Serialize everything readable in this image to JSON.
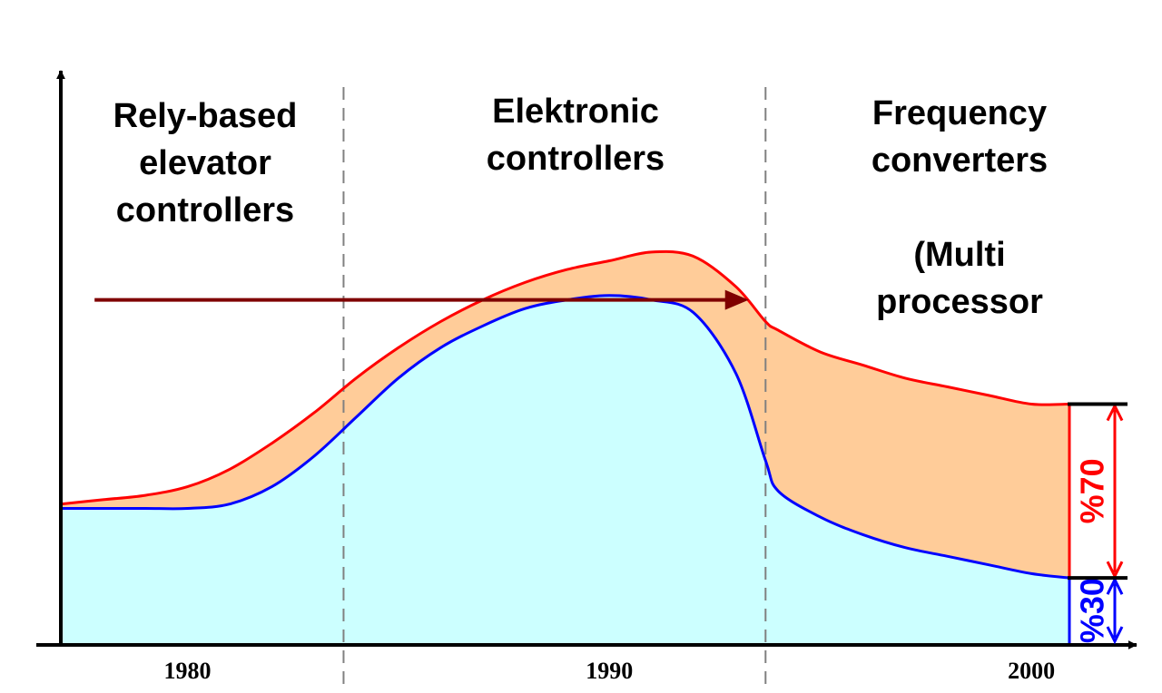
{
  "chart_data": {
    "type": "area",
    "x_ticks": [
      {
        "value": 1980,
        "label": "1980"
      },
      {
        "value": 1990,
        "label": "1990"
      },
      {
        "value": 2000,
        "label": "2000"
      }
    ],
    "eras": [
      {
        "lines": [
          "Rely-based",
          "elevator",
          "controllers"
        ]
      },
      {
        "lines": [
          "Elektronic",
          "controllers"
        ]
      },
      {
        "lines": [
          "Frequency",
          "converters",
          "",
          "(Multi",
          "processor"
        ]
      }
    ],
    "era_dividers_x": [
      1983.7,
      1993.7
    ],
    "xlim": [
      1977,
      2000.9
    ],
    "ylim": [
      0,
      100
    ],
    "series": [
      {
        "color": "#ff0000",
        "fill": "#ffcc99",
        "x": [
          1977,
          1978,
          1979,
          1980,
          1981,
          1982,
          1983,
          1984,
          1985,
          1986,
          1987,
          1988,
          1989,
          1990,
          1991,
          1992,
          1993,
          1993.7,
          1994,
          1995,
          1996,
          1997,
          1998,
          1999,
          2000,
          2000.9
        ],
        "values": [
          32,
          33,
          34,
          36,
          40,
          46,
          53,
          61,
          68,
          74,
          79,
          83,
          86,
          88,
          90,
          89,
          82,
          74,
          72,
          67,
          64,
          61,
          59,
          57,
          55,
          55
        ]
      },
      {
        "color": "#0000ff",
        "fill": "#ccffff",
        "x": [
          1977,
          1978,
          1979,
          1980,
          1981,
          1982,
          1983,
          1984,
          1985,
          1986,
          1987,
          1988,
          1989,
          1990,
          1991,
          1992,
          1993,
          1993.7,
          1994,
          1995,
          1996,
          1997,
          1998,
          1999,
          2000,
          2000.9
        ],
        "values": [
          31,
          31,
          31,
          31,
          32,
          36,
          43,
          52,
          61,
          68,
          73,
          77,
          79,
          80,
          79,
          76,
          62,
          42,
          35,
          29,
          25,
          22,
          20,
          18,
          16,
          15
        ]
      }
    ],
    "trend_arrow": {
      "x_start": 1977.8,
      "x_end": 1993.3,
      "y": 79,
      "color": "#7f0000"
    },
    "annotations": [
      {
        "text": "%70",
        "color": "#ff0000",
        "y_top": 55,
        "y_bottom": 15
      },
      {
        "text": "%30",
        "color": "#0000ff",
        "y_top": 15,
        "y_bottom": 0
      }
    ],
    "grid": false,
    "legend": "none"
  }
}
